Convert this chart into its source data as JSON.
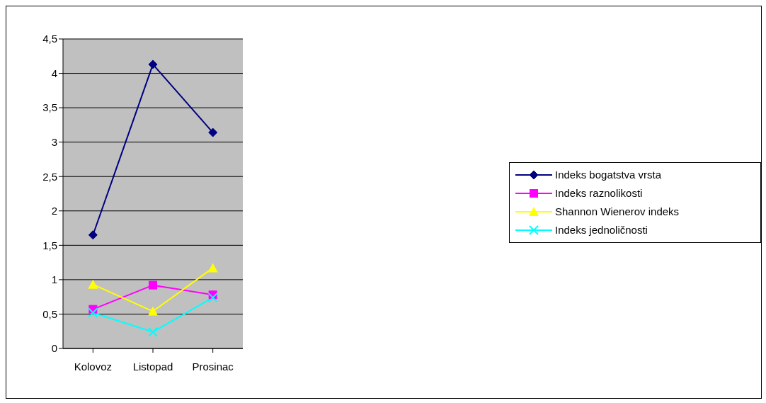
{
  "chart_data": {
    "type": "line",
    "categories": [
      "Kolovoz",
      "Listopad",
      "Prosinac"
    ],
    "series": [
      {
        "name": "Indeks bogatstva vrsta",
        "color": "#000080",
        "marker": "diamond",
        "values": [
          1.65,
          4.13,
          3.14
        ]
      },
      {
        "name": "Indeks raznolikosti",
        "color": "#ff00ff",
        "marker": "square",
        "values": [
          0.57,
          0.92,
          0.78
        ]
      },
      {
        "name": "Shannon Wienerov indeks",
        "color": "#ffff00",
        "marker": "triangle",
        "values": [
          0.93,
          0.54,
          1.17
        ]
      },
      {
        "name": "Indeks jednoličnosti",
        "color": "#00ffff",
        "marker": "cross",
        "values": [
          0.52,
          0.24,
          0.74
        ]
      }
    ],
    "ylim": [
      0,
      4.5
    ],
    "yticks": [
      0,
      {
        "value": 0.5,
        "label": "0,5"
      },
      1,
      {
        "value": 1.5,
        "label": "1,5"
      },
      2,
      {
        "value": 2.5,
        "label": "2,5"
      },
      3,
      {
        "value": 3.5,
        "label": "3,5"
      },
      4,
      {
        "value": 4.5,
        "label": "4,5"
      }
    ],
    "grid": "y",
    "legend": "right",
    "line_style": "solid"
  }
}
